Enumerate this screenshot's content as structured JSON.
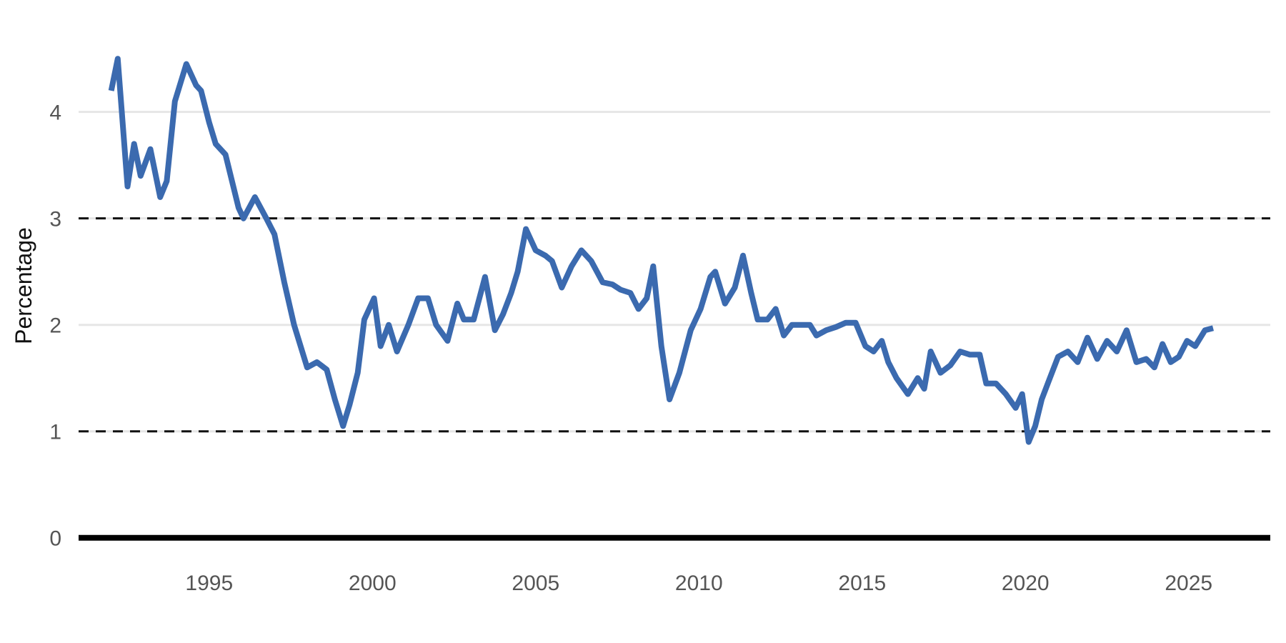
{
  "chart_data": {
    "type": "line",
    "title": "",
    "xlabel": "",
    "ylabel": "Percentage",
    "xlim": [
      1991.0,
      2027.5
    ],
    "ylim": [
      -0.25,
      4.85
    ],
    "x_ticks": [
      1995,
      2000,
      2005,
      2010,
      2015,
      2020,
      2025
    ],
    "y_ticks": [
      0,
      1,
      2,
      3,
      4
    ],
    "grid": "horizontal",
    "reference_lines": [
      {
        "y": 1,
        "style": "dashed"
      },
      {
        "y": 3,
        "style": "dashed"
      },
      {
        "y": 0,
        "style": "solid-thick"
      }
    ],
    "colors": {
      "series": "#3b6aaf",
      "grid": "#e6e6e6",
      "reference": "#111111",
      "text": "#555555"
    },
    "series": [
      {
        "x": [
          1992.0,
          1992.2,
          1992.5,
          1992.7,
          1992.9,
          1993.2,
          1993.5,
          1993.7,
          1993.95,
          1994.3,
          1994.6,
          1994.75,
          1995.0,
          1995.2,
          1995.5,
          1995.9,
          1996.05,
          1996.4,
          1996.75,
          1997.0,
          1997.3,
          1997.6,
          1998.0,
          1998.3,
          1998.6,
          1998.85,
          1999.1,
          1999.3,
          1999.55,
          1999.75,
          2000.05,
          2000.25,
          2000.5,
          2000.75,
          2001.1,
          2001.4,
          2001.7,
          2001.95,
          2002.3,
          2002.6,
          2002.8,
          2003.1,
          2003.45,
          2003.75,
          2004.0,
          2004.25,
          2004.45,
          2004.7,
          2005.0,
          2005.3,
          2005.5,
          2005.8,
          2006.1,
          2006.4,
          2006.7,
          2007.05,
          2007.35,
          2007.6,
          2007.9,
          2008.15,
          2008.4,
          2008.6,
          2008.85,
          2009.1,
          2009.4,
          2009.75,
          2010.05,
          2010.35,
          2010.5,
          2010.8,
          2011.1,
          2011.35,
          2011.6,
          2011.8,
          2012.1,
          2012.35,
          2012.6,
          2012.85,
          2013.1,
          2013.4,
          2013.6,
          2013.9,
          2014.2,
          2014.5,
          2014.8,
          2015.1,
          2015.35,
          2015.6,
          2015.8,
          2016.05,
          2016.4,
          2016.7,
          2016.9,
          2017.1,
          2017.4,
          2017.7,
          2018.0,
          2018.3,
          2018.6,
          2018.8,
          2019.1,
          2019.4,
          2019.7,
          2019.9,
          2020.1,
          2020.3,
          2020.5,
          2020.75,
          2021.0,
          2021.3,
          2021.6,
          2021.9,
          2022.2,
          2022.5,
          2022.8,
          2023.1,
          2023.4,
          2023.7,
          2023.95,
          2024.2,
          2024.45,
          2024.7,
          2024.95,
          2025.2,
          2025.5,
          2025.75
        ],
        "y": [
          4.2,
          4.5,
          3.3,
          3.7,
          3.4,
          3.65,
          3.2,
          3.35,
          4.1,
          4.45,
          4.25,
          4.2,
          3.9,
          3.7,
          3.6,
          3.1,
          3.0,
          3.2,
          3.0,
          2.85,
          2.4,
          2.0,
          1.6,
          1.65,
          1.58,
          1.3,
          1.05,
          1.25,
          1.55,
          2.05,
          2.25,
          1.8,
          2.0,
          1.75,
          2.0,
          2.25,
          2.25,
          2.0,
          1.85,
          2.2,
          2.05,
          2.05,
          2.45,
          1.95,
          2.1,
          2.3,
          2.5,
          2.9,
          2.7,
          2.65,
          2.6,
          2.35,
          2.55,
          2.7,
          2.6,
          2.4,
          2.38,
          2.33,
          2.3,
          2.15,
          2.25,
          2.55,
          1.8,
          1.3,
          1.55,
          1.95,
          2.15,
          2.45,
          2.5,
          2.2,
          2.35,
          2.65,
          2.3,
          2.05,
          2.05,
          2.15,
          1.9,
          2.0,
          2.0,
          2.0,
          1.9,
          1.95,
          1.98,
          2.02,
          2.02,
          1.8,
          1.75,
          1.85,
          1.65,
          1.5,
          1.35,
          1.5,
          1.4,
          1.75,
          1.55,
          1.62,
          1.75,
          1.72,
          1.72,
          1.45,
          1.45,
          1.35,
          1.22,
          1.35,
          0.9,
          1.05,
          1.3,
          1.5,
          1.7,
          1.75,
          1.65,
          1.88,
          1.68,
          1.85,
          1.75,
          1.95,
          1.65,
          1.68,
          1.6,
          1.82,
          1.65,
          1.7,
          1.85,
          1.8,
          1.95,
          1.97
        ],
        "color": "#3b6aaf"
      }
    ]
  }
}
